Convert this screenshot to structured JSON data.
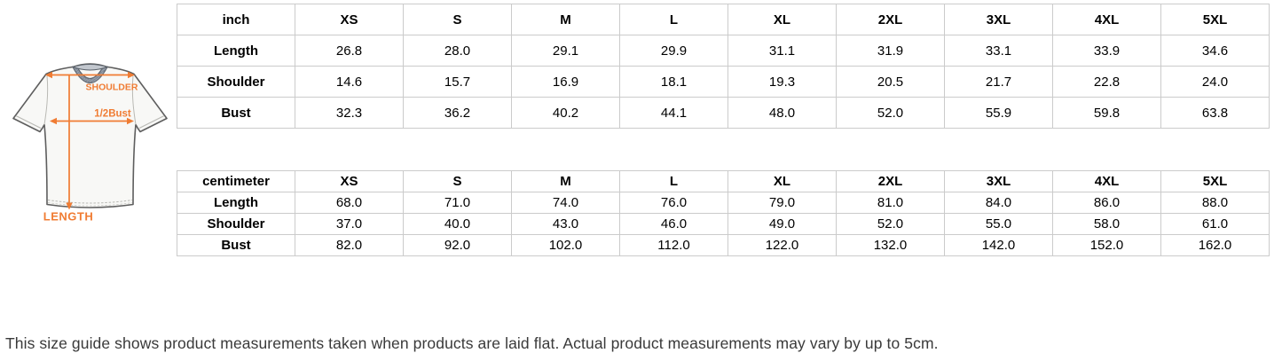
{
  "colors": {
    "accent_orange": "#F07C33",
    "table_border": "#CBCBCB",
    "note_text": "#3A3A3A",
    "collar_gray": "#9BA3AF"
  },
  "diagram": {
    "shoulder_label": "SHOULDER",
    "bust_label": "1/2Bust",
    "length_label": "LENGTH"
  },
  "tables": [
    {
      "unit_header": "inch",
      "columns": [
        "XS",
        "S",
        "M",
        "L",
        "XL",
        "2XL",
        "3XL",
        "4XL",
        "5XL"
      ],
      "rows": [
        {
          "label": "Length",
          "values": [
            "26.8",
            "28.0",
            "29.1",
            "29.9",
            "31.1",
            "31.9",
            "33.1",
            "33.9",
            "34.6"
          ]
        },
        {
          "label": "Shoulder",
          "values": [
            "14.6",
            "15.7",
            "16.9",
            "18.1",
            "19.3",
            "20.5",
            "21.7",
            "22.8",
            "24.0"
          ]
        },
        {
          "label": "Bust",
          "values": [
            "32.3",
            "36.2",
            "40.2",
            "44.1",
            "48.0",
            "52.0",
            "55.9",
            "59.8",
            "63.8"
          ]
        }
      ]
    },
    {
      "unit_header": "centimeter",
      "columns": [
        "XS",
        "S",
        "M",
        "L",
        "XL",
        "2XL",
        "3XL",
        "4XL",
        "5XL"
      ],
      "rows": [
        {
          "label": "Length",
          "values": [
            "68.0",
            "71.0",
            "74.0",
            "76.0",
            "79.0",
            "81.0",
            "84.0",
            "86.0",
            "88.0"
          ]
        },
        {
          "label": "Shoulder",
          "values": [
            "37.0",
            "40.0",
            "43.0",
            "46.0",
            "49.0",
            "52.0",
            "55.0",
            "58.0",
            "61.0"
          ]
        },
        {
          "label": "Bust",
          "values": [
            "82.0",
            "92.0",
            "102.0",
            "112.0",
            "122.0",
            "132.0",
            "142.0",
            "152.0",
            "162.0"
          ]
        }
      ]
    }
  ],
  "note": "This size guide shows product measurements taken when products are laid flat. Actual product measurements may vary by up to 5cm."
}
